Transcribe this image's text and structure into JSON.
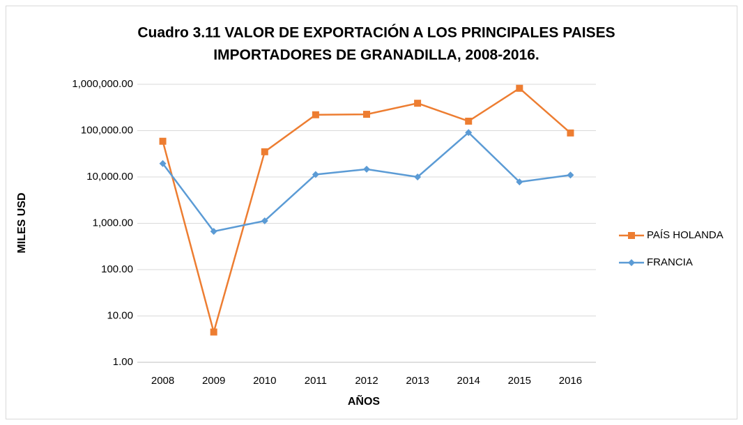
{
  "chart_data": {
    "type": "line",
    "title": [
      "Cuadro 3.11 VALOR DE EXPORTACIÓN A LOS PRINCIPALES PAISES",
      "IMPORTADORES DE GRANADILLA, 2008-2016."
    ],
    "xlabel": "AÑOS",
    "ylabel": "MILES USD",
    "categories": [
      "2008",
      "2009",
      "2010",
      "2011",
      "2012",
      "2013",
      "2014",
      "2015",
      "2016"
    ],
    "series": [
      {
        "name": "PAÍS HOLANDA",
        "color": "#ed7d31",
        "marker": "square",
        "values": [
          59000,
          4.5,
          35000,
          220000,
          225000,
          390000,
          160000,
          820000,
          89000
        ]
      },
      {
        "name": "FRANCIA",
        "color": "#5b9bd5",
        "marker": "diamond",
        "values": [
          19500,
          670,
          1130,
          11300,
          14700,
          10000,
          91000,
          7800,
          11000
        ]
      }
    ],
    "log_y": true,
    "ylim": [
      1,
      1000000
    ],
    "yticks": [
      {
        "value": 1,
        "label": "1.00"
      },
      {
        "value": 10,
        "label": "10.00"
      },
      {
        "value": 100,
        "label": "100.00"
      },
      {
        "value": 1000,
        "label": "1,000.00"
      },
      {
        "value": 10000,
        "label": "10,000.00"
      },
      {
        "value": 100000,
        "label": "100,000.00"
      },
      {
        "value": 1000000,
        "label": "1,000,000.00"
      }
    ],
    "grid": true,
    "legend": "right"
  }
}
